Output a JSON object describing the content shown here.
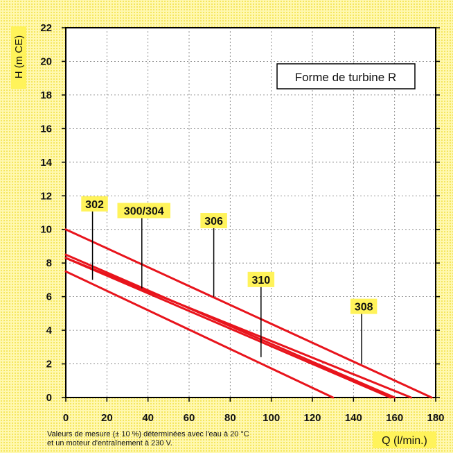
{
  "chart_data": {
    "type": "line",
    "title": "",
    "xlabel": "Q (l/min.)",
    "ylabel": "H (m CE)",
    "xlim": [
      0,
      180
    ],
    "ylim": [
      0,
      22
    ],
    "x_ticks": [
      0,
      20,
      40,
      60,
      80,
      100,
      120,
      140,
      160,
      180
    ],
    "y_ticks": [
      0,
      2,
      4,
      6,
      8,
      10,
      12,
      14,
      16,
      18,
      20,
      22
    ],
    "grid": true,
    "line_color": "#e8141c",
    "annotation_box": "Forme de turbine R",
    "footnote": [
      "Valeurs de mesure (± 10 %) déterminées avec l'eau à 20 °C",
      "et un moteur d'entraînement à 230 V."
    ],
    "series": [
      {
        "name": "302",
        "points": [
          [
            0,
            7.5
          ],
          [
            130,
            0
          ]
        ],
        "label_at": [
          13,
          7.0
        ],
        "tag_pos": [
          14,
          11.4
        ]
      },
      {
        "name": "300/304",
        "points": [
          [
            0,
            8.5
          ],
          [
            160,
            0
          ]
        ],
        "label_at": [
          37,
          6.5
        ],
        "tag_pos": [
          38,
          11.0
        ]
      },
      {
        "name": "306",
        "points": [
          [
            0,
            10.0
          ],
          [
            178,
            0
          ]
        ],
        "label_at": [
          72,
          6.0
        ],
        "tag_pos": [
          72,
          10.4
        ]
      },
      {
        "name": "310",
        "points": [
          [
            0,
            8.3
          ],
          [
            158,
            0
          ]
        ],
        "label_at": [
          95,
          2.4
        ],
        "tag_pos": [
          95,
          6.9
        ]
      },
      {
        "name": "308",
        "points": [
          [
            0,
            8.3
          ],
          [
            168,
            0
          ]
        ],
        "label_at": [
          144,
          2.0
        ],
        "tag_pos": [
          145,
          5.3
        ]
      }
    ]
  }
}
